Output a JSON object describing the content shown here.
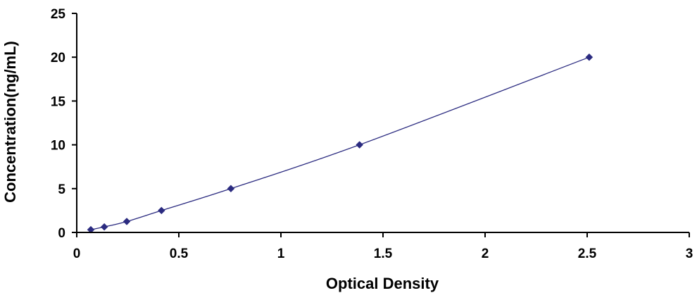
{
  "chart_data": {
    "type": "scatter",
    "title": "",
    "xlabel": "Optical Density",
    "ylabel": "Concentration(ng/mL)",
    "xlim": [
      0,
      3
    ],
    "ylim": [
      0,
      25
    ],
    "x_ticks": [
      "0",
      "0.5",
      "1",
      "1.5",
      "2",
      "2.5",
      "3"
    ],
    "y_ticks": [
      "0",
      "5",
      "10",
      "15",
      "20",
      "25"
    ],
    "grid": false,
    "legend": "none",
    "series": [
      {
        "x": [
          0.069,
          0.135,
          0.245,
          0.415,
          0.755,
          1.385,
          2.51
        ],
        "y": [
          0.31,
          0.63,
          1.25,
          2.5,
          5,
          10,
          20
        ],
        "marker": "diamond",
        "line": "smooth"
      }
    ],
    "colors": {
      "series": "#2B2B80",
      "axis": "#000000"
    }
  }
}
